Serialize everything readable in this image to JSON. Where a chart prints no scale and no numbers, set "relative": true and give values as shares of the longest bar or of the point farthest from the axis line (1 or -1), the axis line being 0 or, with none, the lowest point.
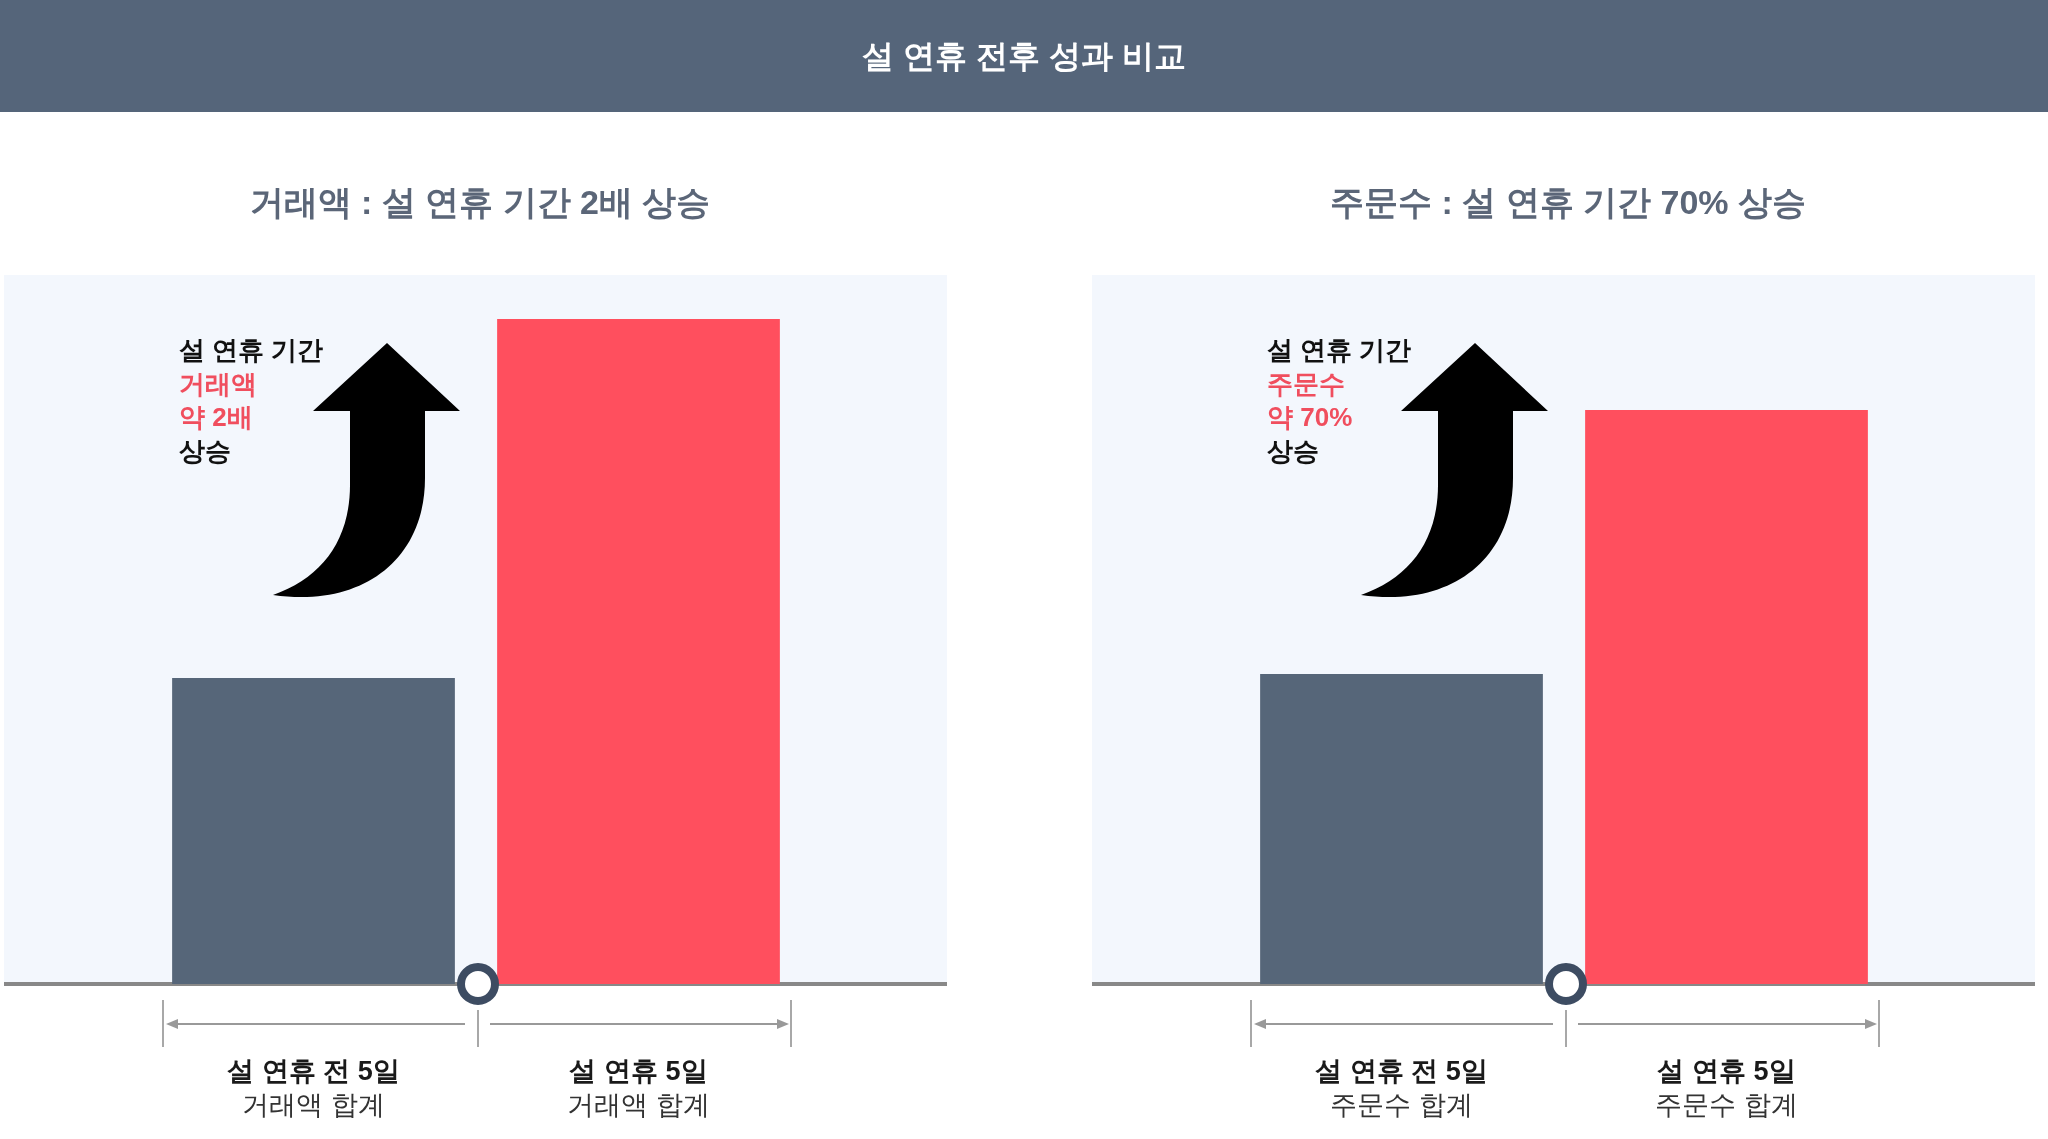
{
  "chart_data": [
    {
      "type": "bar",
      "title": "설 연휴 전후 성과 비교",
      "subtitle": "거래액 : 설 연휴 기간 2배 상승",
      "categories": [
        "설 연휴 전 5일\n거래액 합계",
        "설 연휴 5일\n거래액 합계"
      ],
      "values": [
        0.46,
        1
      ],
      "colors": [
        "#566679",
        "#ff4f5e"
      ],
      "relative": true,
      "annotations": [
        "설 연휴 기간\n거래액\n약 2배\n상승"
      ]
    },
    {
      "type": "bar",
      "subtitle": "주문수 : 설 연휴 기간 70% 상승",
      "categories": [
        "설 연휴 전 5일\n주문수 합계",
        "설 연휴 5일\n주문수 합계"
      ],
      "values": [
        0.54,
        1
      ],
      "colors": [
        "#566679",
        "#ff4f5e"
      ],
      "relative": true,
      "annotations": [
        "설 연휴 기간\n주문수\n약 70%\n상승"
      ]
    }
  ]
}
